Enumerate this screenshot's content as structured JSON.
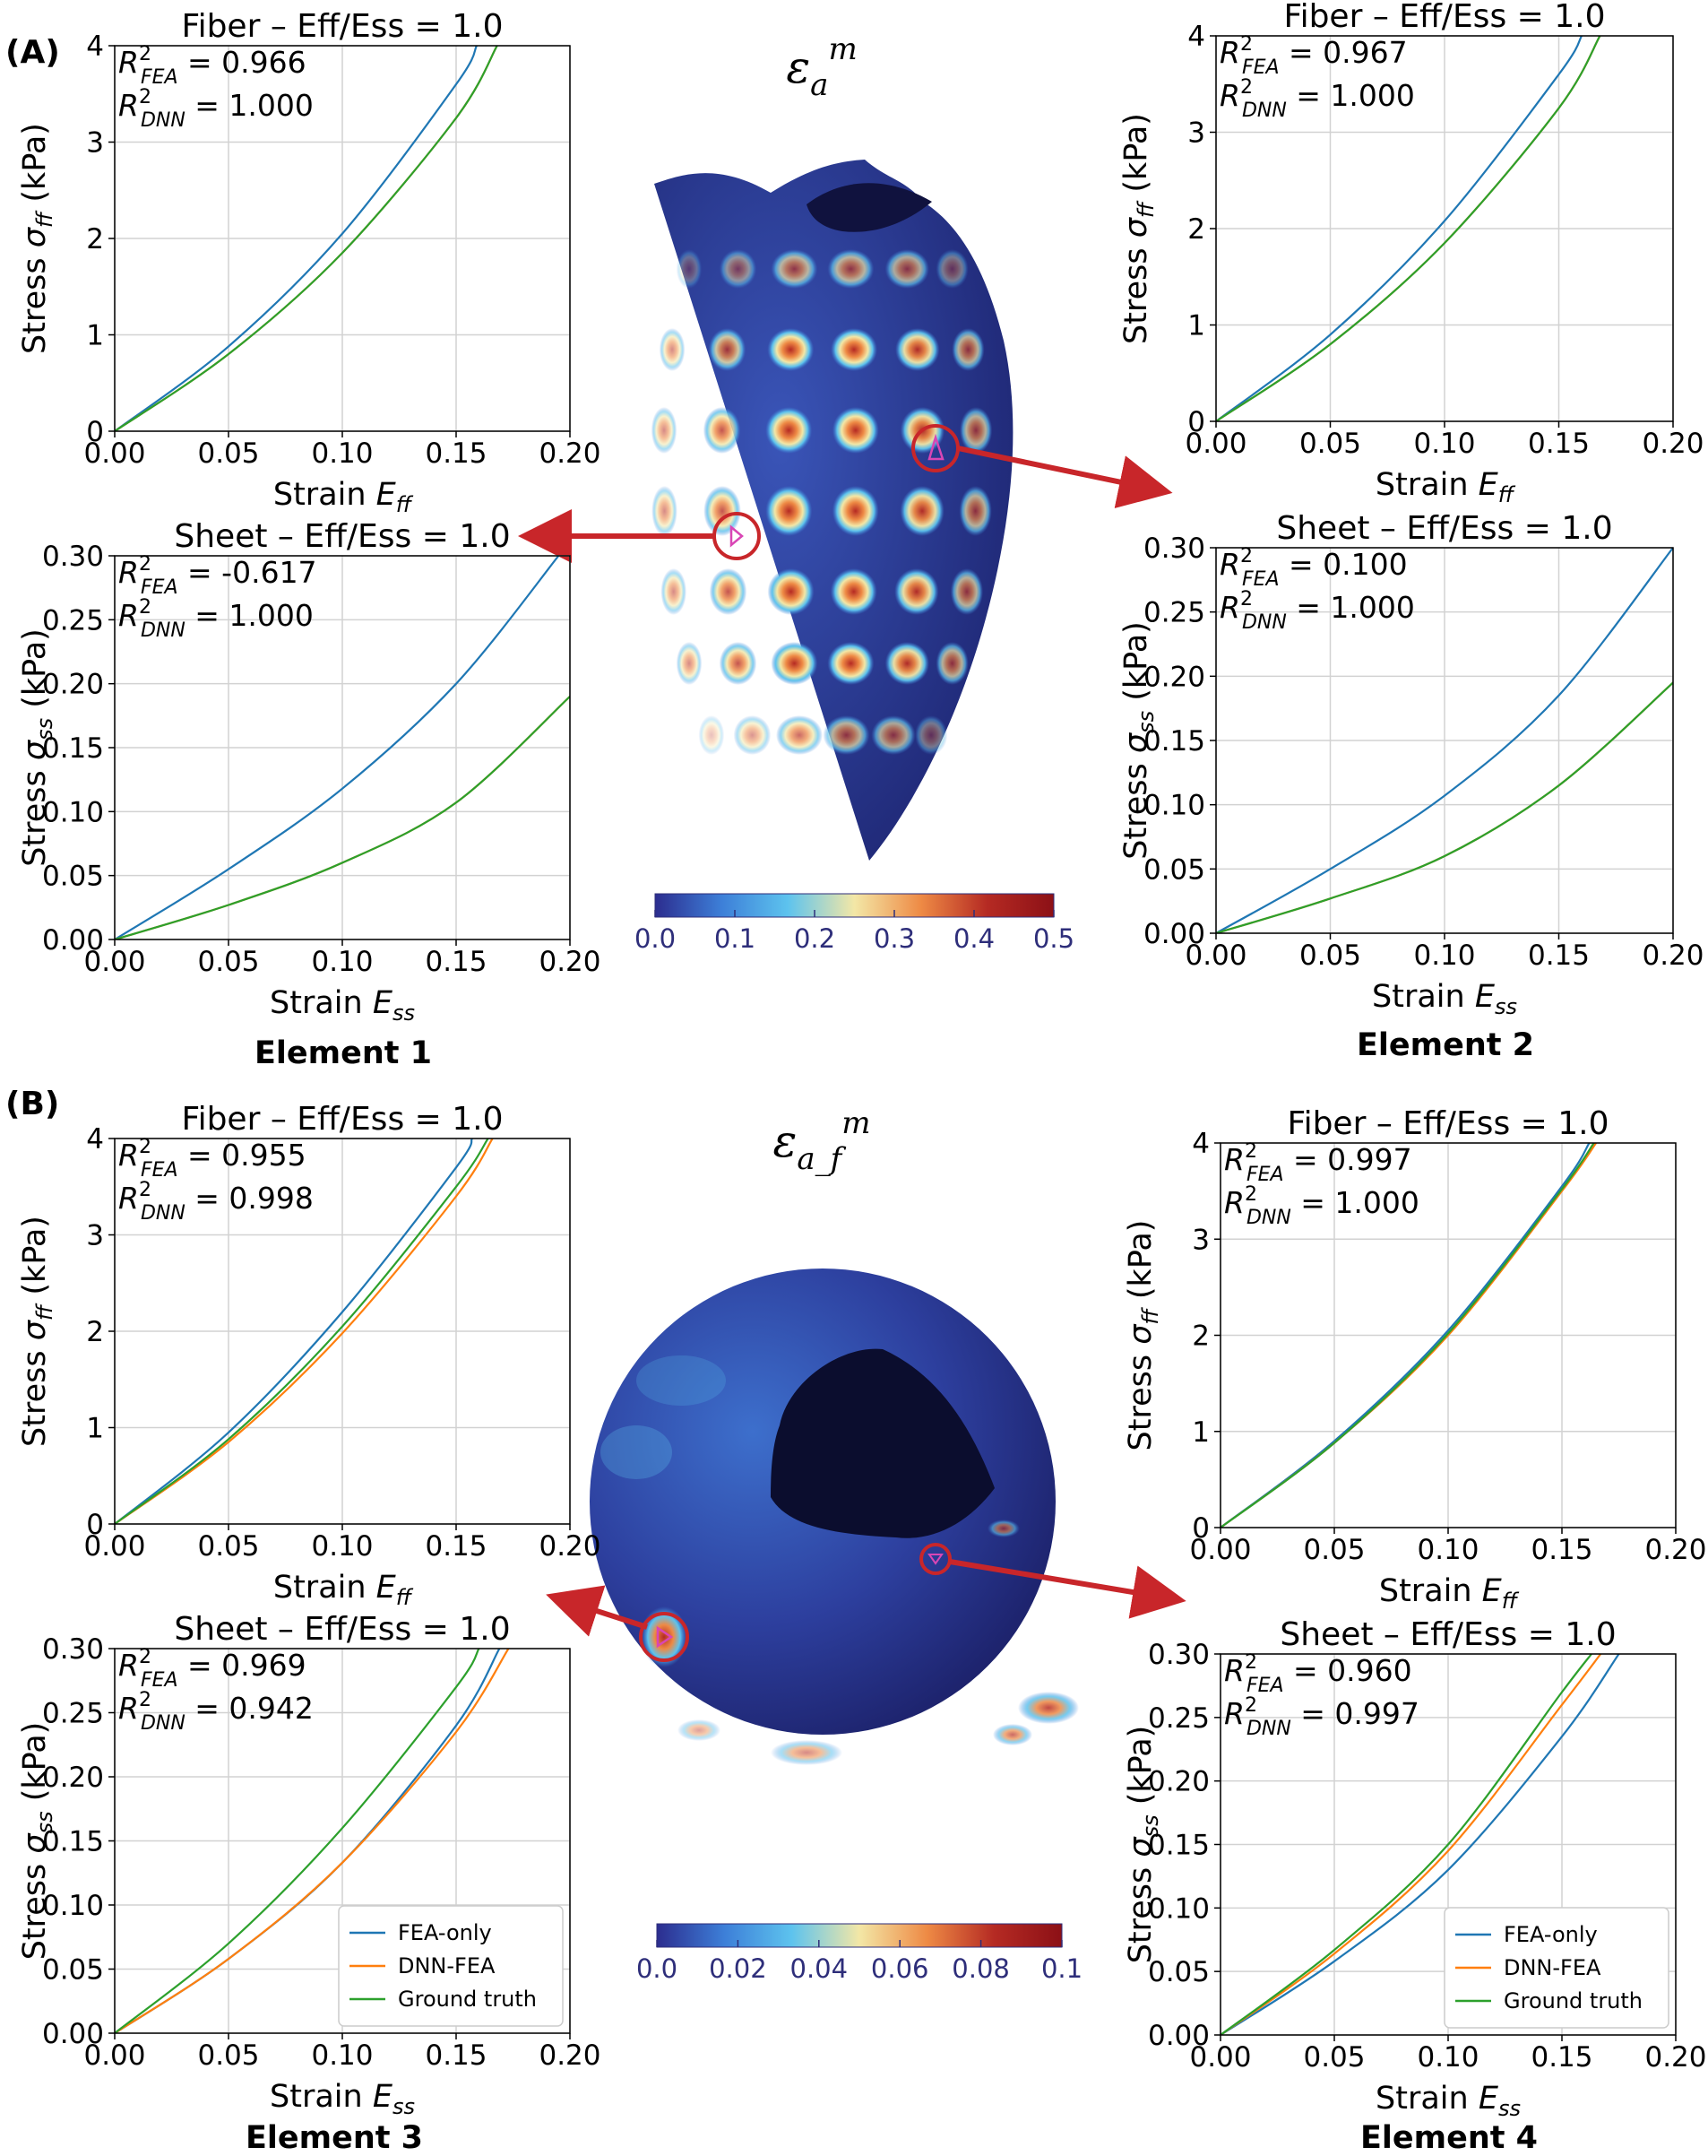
{
  "panels": [
    {
      "label": "(A)",
      "title_sym": "ε",
      "title_sub": "a",
      "title_sup": "m",
      "colorbar": {
        "ticks": [
          "0.0",
          "0.1",
          "0.2",
          "0.3",
          "0.4",
          "0.5"
        ],
        "colors": [
          "#2c2d8f",
          "#3d7fd8",
          "#5dc3ee",
          "#f3e7a6",
          "#ee8a45",
          "#b52a23",
          "#8c1016"
        ]
      },
      "elements": [
        "Element 1",
        "Element 2"
      ]
    },
    {
      "label": "(B)",
      "title_sym": "ε",
      "title_sub": "a_f",
      "title_sup": "m",
      "colorbar": {
        "ticks": [
          "0.0",
          "0.02",
          "0.04",
          "0.06",
          "0.08",
          "0.1"
        ],
        "colors": [
          "#2c2d8f",
          "#3d7fd8",
          "#5dc3ee",
          "#f3e7a6",
          "#ee8a45",
          "#b52a23",
          "#8c1016"
        ]
      },
      "elements": [
        "Element 3",
        "Element 4"
      ]
    }
  ],
  "series_colors": {
    "FEA-only": "#1f77b4",
    "DNN-FEA": "#ff7f0e",
    "Ground truth": "#2ca02c"
  },
  "chart_data": [
    {
      "id": "A1f",
      "type": "line",
      "title": "Fiber – Eff/Ess = 1.0",
      "xlabel_main": "Strain ",
      "xlabel_sym": "E",
      "xlabel_sub": "ff",
      "ylabel_main": "Stress ",
      "ylabel_sym": "σ",
      "ylabel_sub": "ff",
      "ylabel_unit": " (kPa)",
      "xlim": [
        0,
        0.2
      ],
      "ylim": [
        0,
        4
      ],
      "xticks": [
        "0.00",
        "0.05",
        "0.10",
        "0.15",
        "0.20"
      ],
      "yticks": [
        "0",
        "1",
        "2",
        "3",
        "4"
      ],
      "r2": [
        {
          "sub": "FEA",
          "text": " = 0.966"
        },
        {
          "sub": "DNN",
          "text": " = 1.000"
        }
      ],
      "series": [
        {
          "name": "FEA-only",
          "x": [
            0,
            0.05,
            0.1,
            0.15,
            0.159
          ],
          "y": [
            0,
            0.88,
            2.05,
            3.6,
            4.0
          ]
        },
        {
          "name": "DNN-FEA",
          "x": [
            0,
            0.05,
            0.1,
            0.15,
            0.168
          ],
          "y": [
            0,
            0.8,
            1.85,
            3.25,
            4.0
          ]
        },
        {
          "name": "Ground truth",
          "x": [
            0,
            0.05,
            0.1,
            0.15,
            0.168
          ],
          "y": [
            0,
            0.8,
            1.85,
            3.25,
            4.0
          ]
        }
      ],
      "legend": false
    },
    {
      "id": "A1s",
      "type": "line",
      "title": "Sheet – Eff/Ess = 1.0",
      "xlabel_main": "Strain ",
      "xlabel_sym": "E",
      "xlabel_sub": "ss",
      "ylabel_main": "Stress ",
      "ylabel_sym": "σ",
      "ylabel_sub": "ss",
      "ylabel_unit": " (kPa)",
      "xlim": [
        0,
        0.2
      ],
      "ylim": [
        0,
        0.3
      ],
      "xticks": [
        "0.00",
        "0.05",
        "0.10",
        "0.15",
        "0.20"
      ],
      "yticks": [
        "0.00",
        "0.05",
        "0.10",
        "0.15",
        "0.20",
        "0.25",
        "0.30"
      ],
      "r2": [
        {
          "sub": "FEA",
          "text": " = -0.617"
        },
        {
          "sub": "DNN",
          "text": " = 1.000"
        }
      ],
      "series": [
        {
          "name": "FEA-only",
          "x": [
            0,
            0.05,
            0.1,
            0.15,
            0.195
          ],
          "y": [
            0,
            0.055,
            0.118,
            0.2,
            0.3
          ]
        },
        {
          "name": "DNN-FEA",
          "x": [
            0,
            0.05,
            0.1,
            0.15,
            0.2
          ],
          "y": [
            0,
            0.027,
            0.06,
            0.107,
            0.19
          ]
        },
        {
          "name": "Ground truth",
          "x": [
            0,
            0.05,
            0.1,
            0.15,
            0.2
          ],
          "y": [
            0,
            0.027,
            0.06,
            0.107,
            0.19
          ]
        }
      ],
      "legend": false
    },
    {
      "id": "A2f",
      "type": "line",
      "title": "Fiber – Eff/Ess = 1.0",
      "xlabel_main": "Strain ",
      "xlabel_sym": "E",
      "xlabel_sub": "ff",
      "ylabel_main": "Stress ",
      "ylabel_sym": "σ",
      "ylabel_sub": "ff",
      "ylabel_unit": " (kPa)",
      "xlim": [
        0,
        0.2
      ],
      "ylim": [
        0,
        4
      ],
      "xticks": [
        "0.00",
        "0.05",
        "0.10",
        "0.15",
        "0.20"
      ],
      "yticks": [
        "0",
        "1",
        "2",
        "3",
        "4"
      ],
      "r2": [
        {
          "sub": "FEA",
          "text": " = 0.967"
        },
        {
          "sub": "DNN",
          "text": " = 1.000"
        }
      ],
      "series": [
        {
          "name": "FEA-only",
          "x": [
            0,
            0.05,
            0.1,
            0.15,
            0.16
          ],
          "y": [
            0,
            0.9,
            2.08,
            3.6,
            4.0
          ]
        },
        {
          "name": "DNN-FEA",
          "x": [
            0,
            0.05,
            0.1,
            0.15,
            0.168
          ],
          "y": [
            0,
            0.8,
            1.85,
            3.25,
            4.0
          ]
        },
        {
          "name": "Ground truth",
          "x": [
            0,
            0.05,
            0.1,
            0.15,
            0.168
          ],
          "y": [
            0,
            0.8,
            1.85,
            3.25,
            4.0
          ]
        }
      ],
      "legend": false
    },
    {
      "id": "A2s",
      "type": "line",
      "title": "Sheet – Eff/Ess = 1.0",
      "xlabel_main": "Strain ",
      "xlabel_sym": "E",
      "xlabel_sub": "ss",
      "ylabel_main": "Stress ",
      "ylabel_sym": "σ",
      "ylabel_sub": "ss",
      "ylabel_unit": " (kPa)",
      "xlim": [
        0,
        0.2
      ],
      "ylim": [
        0,
        0.3
      ],
      "xticks": [
        "0.00",
        "0.05",
        "0.10",
        "0.15",
        "0.20"
      ],
      "yticks": [
        "0.00",
        "0.05",
        "0.10",
        "0.15",
        "0.20",
        "0.25",
        "0.30"
      ],
      "r2": [
        {
          "sub": "FEA",
          "text": " = 0.100"
        },
        {
          "sub": "DNN",
          "text": " = 1.000"
        }
      ],
      "series": [
        {
          "name": "FEA-only",
          "x": [
            0,
            0.05,
            0.1,
            0.15,
            0.2
          ],
          "y": [
            0,
            0.05,
            0.107,
            0.185,
            0.3
          ]
        },
        {
          "name": "DNN-FEA",
          "x": [
            0,
            0.05,
            0.1,
            0.15,
            0.2
          ],
          "y": [
            0,
            0.027,
            0.06,
            0.115,
            0.195
          ]
        },
        {
          "name": "Ground truth",
          "x": [
            0,
            0.05,
            0.1,
            0.15,
            0.2
          ],
          "y": [
            0,
            0.027,
            0.06,
            0.115,
            0.195
          ]
        }
      ],
      "legend": false
    },
    {
      "id": "B3f",
      "type": "line",
      "title": "Fiber – Eff/Ess = 1.0",
      "xlabel_main": "Strain ",
      "xlabel_sym": "E",
      "xlabel_sub": "ff",
      "ylabel_main": "Stress ",
      "ylabel_sym": "σ",
      "ylabel_sub": "ff",
      "ylabel_unit": " (kPa)",
      "xlim": [
        0,
        0.2
      ],
      "ylim": [
        0,
        4
      ],
      "xticks": [
        "0.00",
        "0.05",
        "0.10",
        "0.15",
        "0.20"
      ],
      "yticks": [
        "0",
        "1",
        "2",
        "3",
        "4"
      ],
      "r2": [
        {
          "sub": "FEA",
          "text": " = 0.955"
        },
        {
          "sub": "DNN",
          "text": " = 0.998"
        }
      ],
      "series": [
        {
          "name": "FEA-only",
          "x": [
            0,
            0.05,
            0.1,
            0.15,
            0.157
          ],
          "y": [
            0,
            0.95,
            2.2,
            3.7,
            4.0
          ]
        },
        {
          "name": "DNN-FEA",
          "x": [
            0,
            0.05,
            0.1,
            0.15,
            0.166
          ],
          "y": [
            0,
            0.85,
            1.98,
            3.4,
            4.0
          ]
        },
        {
          "name": "Ground truth",
          "x": [
            0,
            0.05,
            0.1,
            0.15,
            0.164
          ],
          "y": [
            0,
            0.88,
            2.05,
            3.5,
            4.0
          ]
        }
      ],
      "legend": false
    },
    {
      "id": "B3s",
      "type": "line",
      "title": "Sheet – Eff/Ess = 1.0",
      "xlabel_main": "Strain ",
      "xlabel_sym": "E",
      "xlabel_sub": "ss",
      "ylabel_main": "Stress ",
      "ylabel_sym": "σ",
      "ylabel_sub": "ss",
      "ylabel_unit": " (kPa)",
      "xlim": [
        0,
        0.2
      ],
      "ylim": [
        0,
        0.3
      ],
      "xticks": [
        "0.00",
        "0.05",
        "0.10",
        "0.15",
        "0.20"
      ],
      "yticks": [
        "0.00",
        "0.05",
        "0.10",
        "0.15",
        "0.20",
        "0.25",
        "0.30"
      ],
      "r2": [
        {
          "sub": "FEA",
          "text": " = 0.969"
        },
        {
          "sub": "DNN",
          "text": " = 0.942"
        }
      ],
      "series": [
        {
          "name": "FEA-only",
          "x": [
            0,
            0.05,
            0.1,
            0.15,
            0.169
          ],
          "y": [
            0,
            0.058,
            0.133,
            0.24,
            0.3
          ]
        },
        {
          "name": "DNN-FEA",
          "x": [
            0,
            0.05,
            0.1,
            0.15,
            0.173
          ],
          "y": [
            0,
            0.058,
            0.133,
            0.235,
            0.3
          ]
        },
        {
          "name": "Ground truth",
          "x": [
            0,
            0.05,
            0.1,
            0.15,
            0.16
          ],
          "y": [
            0,
            0.07,
            0.16,
            0.27,
            0.3
          ]
        }
      ],
      "legend": true
    },
    {
      "id": "B4f",
      "type": "line",
      "title": "Fiber – Eff/Ess = 1.0",
      "xlabel_main": "Strain ",
      "xlabel_sym": "E",
      "xlabel_sub": "ff",
      "ylabel_main": "Stress ",
      "ylabel_sym": "σ",
      "ylabel_sub": "ff",
      "ylabel_unit": " (kPa)",
      "xlim": [
        0,
        0.2
      ],
      "ylim": [
        0,
        4
      ],
      "xticks": [
        "0.00",
        "0.05",
        "0.10",
        "0.15",
        "0.20"
      ],
      "yticks": [
        "0",
        "1",
        "2",
        "3",
        "4"
      ],
      "r2": [
        {
          "sub": "FEA",
          "text": " = 0.997"
        },
        {
          "sub": "DNN",
          "text": " = 1.000"
        }
      ],
      "series": [
        {
          "name": "FEA-only",
          "x": [
            0,
            0.05,
            0.1,
            0.15,
            0.162
          ],
          "y": [
            0,
            0.9,
            2.05,
            3.55,
            4.0
          ]
        },
        {
          "name": "DNN-FEA",
          "x": [
            0,
            0.05,
            0.1,
            0.15,
            0.165
          ],
          "y": [
            0,
            0.88,
            2.0,
            3.5,
            4.0
          ]
        },
        {
          "name": "Ground truth",
          "x": [
            0,
            0.05,
            0.1,
            0.15,
            0.164
          ],
          "y": [
            0,
            0.88,
            2.02,
            3.52,
            4.0
          ]
        }
      ],
      "legend": false
    },
    {
      "id": "B4s",
      "type": "line",
      "title": "Sheet – Eff/Ess = 1.0",
      "xlabel_main": "Strain ",
      "xlabel_sym": "E",
      "xlabel_sub": "ss",
      "ylabel_main": "Stress ",
      "ylabel_sym": "σ",
      "ylabel_sub": "ss",
      "ylabel_unit": " (kPa)",
      "xlim": [
        0,
        0.2
      ],
      "ylim": [
        0,
        0.3
      ],
      "xticks": [
        "0.00",
        "0.05",
        "0.10",
        "0.15",
        "0.20"
      ],
      "yticks": [
        "0.00",
        "0.05",
        "0.10",
        "0.15",
        "0.20",
        "0.25",
        "0.30"
      ],
      "r2": [
        {
          "sub": "FEA",
          "text": " = 0.960"
        },
        {
          "sub": "DNN",
          "text": " = 0.997"
        }
      ],
      "series": [
        {
          "name": "FEA-only",
          "x": [
            0,
            0.05,
            0.1,
            0.15,
            0.175
          ],
          "y": [
            0,
            0.058,
            0.13,
            0.235,
            0.3
          ]
        },
        {
          "name": "DNN-FEA",
          "x": [
            0,
            0.05,
            0.1,
            0.15,
            0.167
          ],
          "y": [
            0,
            0.064,
            0.145,
            0.26,
            0.3
          ]
        },
        {
          "name": "Ground truth",
          "x": [
            0,
            0.05,
            0.1,
            0.15,
            0.163
          ],
          "y": [
            0,
            0.067,
            0.15,
            0.27,
            0.3
          ]
        }
      ],
      "legend": true
    }
  ]
}
